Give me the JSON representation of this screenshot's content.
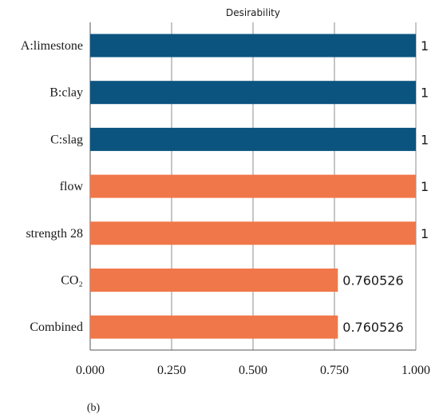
{
  "chart_data": {
    "type": "bar",
    "orientation": "horizontal",
    "title": "Desirability",
    "categories": [
      "A:limestone",
      "B:clay",
      "C:slag",
      "flow",
      "strength 28",
      "CO₂",
      "Combined"
    ],
    "values": [
      1,
      1,
      1,
      1,
      1,
      0.760526,
      0.760526
    ],
    "value_labels": [
      "1",
      "1",
      "1",
      "1",
      "1",
      "0.760526",
      "0.760526"
    ],
    "bar_colors": [
      "#0b5480",
      "#0b5480",
      "#0b5480",
      "#f0774a",
      "#f0774a",
      "#f0774a",
      "#f0774a"
    ],
    "xlim": [
      0,
      1
    ],
    "xticks": [
      0,
      0.25,
      0.5,
      0.75,
      1
    ],
    "xtick_labels": [
      "0.000",
      "0.250",
      "0.500",
      "0.750",
      "1.000"
    ],
    "grid": true
  },
  "caption": "(b)"
}
